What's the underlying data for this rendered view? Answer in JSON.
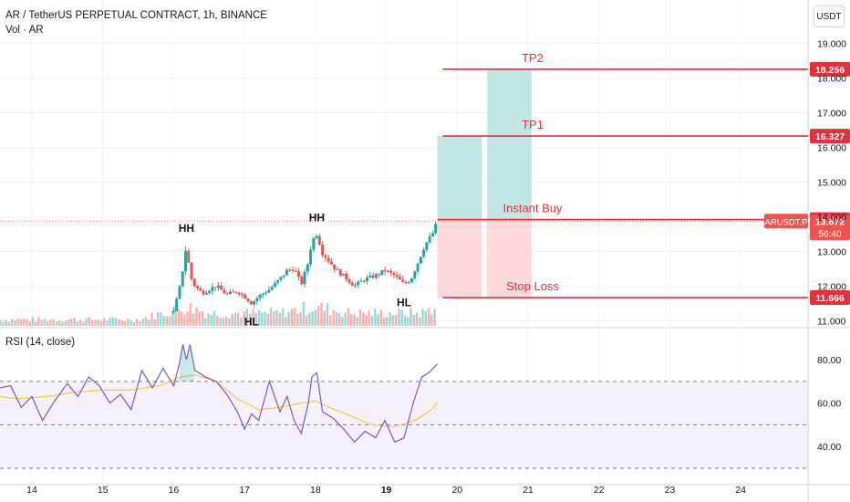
{
  "header": {
    "title": "AR / TetherUS PERPETUAL CONTRACT, 1h, BINANCE",
    "volume_label": "Vol · AR",
    "rsi_label": "RSI (14, close)",
    "currency": "USDT"
  },
  "colors": {
    "up": "#26a69a",
    "down": "#ef5350",
    "level_line": "#e0313f",
    "rsi_line": "#7e57c2",
    "rsi_ma": "#f7c948",
    "profit_zone": "#b2dfdb",
    "loss_zone": "#fcd2d4"
  },
  "chart_data": [
    {
      "type": "candlestick",
      "symbol": "ARUSDT.P",
      "x_ticks": [
        "14",
        "15",
        "16",
        "17",
        "18",
        "19",
        "20",
        "21",
        "22",
        "23",
        "24"
      ],
      "y_ticks": [
        "11.000",
        "12.000",
        "13.000",
        "14.000",
        "15.000",
        "16.000",
        "17.000",
        "18.000",
        "19.000"
      ],
      "ylim": [
        10.85,
        19.2
      ],
      "xlim": [
        13.55,
        24.95
      ],
      "price_path": [
        [
          16.0,
          11.25
        ],
        [
          16.08,
          11.9
        ],
        [
          16.13,
          12.5
        ],
        [
          16.18,
          13.2
        ],
        [
          16.23,
          12.3
        ],
        [
          16.3,
          12.0
        ],
        [
          16.4,
          11.8
        ],
        [
          16.5,
          11.9
        ],
        [
          16.6,
          12.0
        ],
        [
          16.75,
          11.75
        ],
        [
          16.9,
          11.85
        ],
        [
          17.0,
          11.7
        ],
        [
          17.1,
          11.5
        ],
        [
          17.2,
          11.7
        ],
        [
          17.35,
          11.9
        ],
        [
          17.5,
          12.2
        ],
        [
          17.6,
          12.45
        ],
        [
          17.7,
          12.5
        ],
        [
          17.8,
          12.05
        ],
        [
          17.9,
          12.7
        ],
        [
          17.95,
          13.3
        ],
        [
          18.02,
          13.5
        ],
        [
          18.1,
          12.95
        ],
        [
          18.2,
          12.7
        ],
        [
          18.3,
          12.45
        ],
        [
          18.45,
          12.2
        ],
        [
          18.55,
          12.0
        ],
        [
          18.7,
          12.2
        ],
        [
          18.85,
          12.3
        ],
        [
          18.98,
          12.45
        ],
        [
          19.12,
          12.3
        ],
        [
          19.25,
          12.05
        ],
        [
          19.35,
          12.2
        ],
        [
          19.45,
          12.7
        ],
        [
          19.55,
          13.2
        ],
        [
          19.65,
          13.5
        ],
        [
          19.72,
          13.87
        ]
      ],
      "volume_path": [
        [
          14.5,
          1
        ],
        [
          15.5,
          1
        ],
        [
          16.2,
          3
        ],
        [
          16.5,
          2
        ],
        [
          17.0,
          2
        ],
        [
          17.5,
          2
        ],
        [
          18.0,
          3
        ],
        [
          18.5,
          2
        ],
        [
          19.0,
          2
        ],
        [
          19.5,
          2
        ],
        [
          19.7,
          3
        ]
      ],
      "swing_labels": [
        {
          "text": "HH",
          "x": 16.18,
          "price": 13.2
        },
        {
          "text": "HL",
          "x": 17.1,
          "price": 11.5
        },
        {
          "text": "HH",
          "x": 18.02,
          "price": 13.5
        },
        {
          "text": "HL",
          "x": 19.25,
          "price": 12.05
        }
      ],
      "levels": [
        {
          "name": "TP2",
          "price": 18.256,
          "label": "18.256"
        },
        {
          "name": "TP1",
          "price": 16.327,
          "label": "16.327"
        },
        {
          "name": "Instant Buy",
          "price": 13.916,
          "label": "13.916"
        },
        {
          "name": "Stop Loss",
          "price": 11.666,
          "label": "11.666"
        }
      ],
      "last_price": {
        "symbol": "ARUSDT.P",
        "value": "13.872",
        "countdown": "56:40",
        "price": 13.872
      },
      "positions": [
        {
          "x_start": 19.72,
          "x_end": 20.35,
          "entry": 13.916,
          "target": 16.327,
          "stop": 11.666
        },
        {
          "x_start": 20.42,
          "x_end": 21.05,
          "entry": 13.916,
          "target": 18.256,
          "stop": 11.666
        }
      ]
    },
    {
      "type": "line",
      "title": "RSI (14, close)",
      "y_ticks": [
        "40.00",
        "60.00",
        "80.00"
      ],
      "ylim": [
        30,
        88
      ],
      "bands": [
        30,
        50,
        70
      ],
      "rsi_path": [
        [
          13.55,
          67
        ],
        [
          13.7,
          68
        ],
        [
          13.85,
          58
        ],
        [
          14.0,
          63
        ],
        [
          14.15,
          52
        ],
        [
          14.3,
          60
        ],
        [
          14.5,
          69
        ],
        [
          14.65,
          63
        ],
        [
          14.8,
          72
        ],
        [
          14.95,
          68
        ],
        [
          15.1,
          60
        ],
        [
          15.25,
          64
        ],
        [
          15.4,
          57
        ],
        [
          15.55,
          75
        ],
        [
          15.7,
          67
        ],
        [
          15.85,
          76
        ],
        [
          16.0,
          68
        ],
        [
          16.08,
          78
        ],
        [
          16.13,
          87
        ],
        [
          16.18,
          80
        ],
        [
          16.23,
          87
        ],
        [
          16.3,
          75
        ],
        [
          16.45,
          72
        ],
        [
          16.6,
          70
        ],
        [
          16.75,
          64
        ],
        [
          16.9,
          56
        ],
        [
          17.0,
          48
        ],
        [
          17.1,
          55
        ],
        [
          17.2,
          52
        ],
        [
          17.35,
          70
        ],
        [
          17.5,
          56
        ],
        [
          17.6,
          63
        ],
        [
          17.7,
          52
        ],
        [
          17.8,
          46
        ],
        [
          17.9,
          60
        ],
        [
          17.95,
          72
        ],
        [
          18.02,
          74
        ],
        [
          18.1,
          56
        ],
        [
          18.25,
          53
        ],
        [
          18.4,
          48
        ],
        [
          18.55,
          42
        ],
        [
          18.7,
          47
        ],
        [
          18.85,
          44
        ],
        [
          18.98,
          52
        ],
        [
          19.12,
          42
        ],
        [
          19.25,
          44
        ],
        [
          19.38,
          60
        ],
        [
          19.5,
          72
        ],
        [
          19.6,
          74
        ],
        [
          19.72,
          78
        ]
      ],
      "ma_path": [
        [
          13.55,
          63
        ],
        [
          13.8,
          62
        ],
        [
          14.2,
          63
        ],
        [
          14.6,
          65
        ],
        [
          15.0,
          66
        ],
        [
          15.4,
          66
        ],
        [
          15.8,
          68
        ],
        [
          16.1,
          72
        ],
        [
          16.3,
          73
        ],
        [
          16.6,
          70
        ],
        [
          16.9,
          62
        ],
        [
          17.2,
          57
        ],
        [
          17.5,
          58
        ],
        [
          17.8,
          60
        ],
        [
          18.0,
          61
        ],
        [
          18.2,
          58
        ],
        [
          18.5,
          54
        ],
        [
          18.8,
          50
        ],
        [
          19.1,
          49
        ],
        [
          19.4,
          52
        ],
        [
          19.6,
          56
        ],
        [
          19.72,
          60
        ]
      ]
    }
  ]
}
